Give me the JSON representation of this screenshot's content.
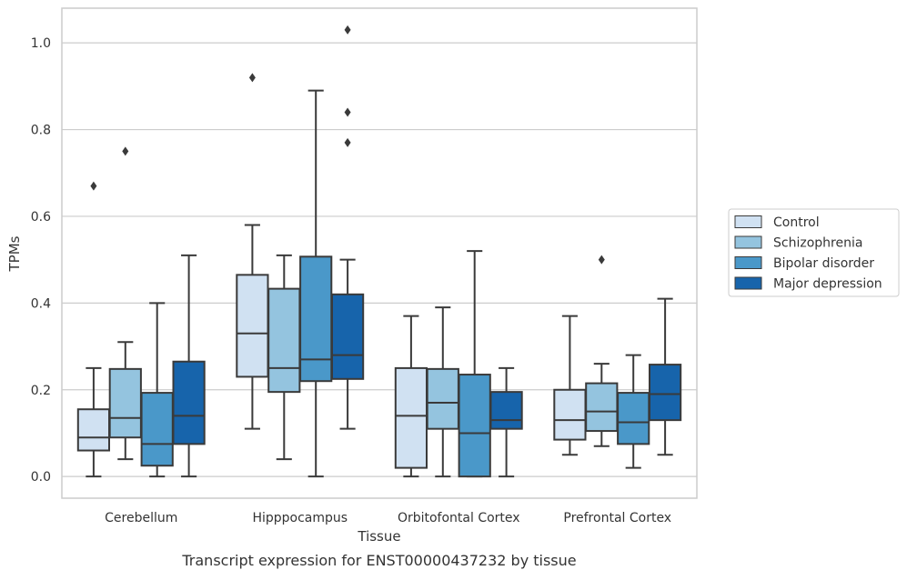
{
  "chart_data": {
    "type": "boxplot",
    "title": "",
    "caption": "Transcript expression for ENST00000437232 by tissue",
    "xlabel": "Tissue",
    "ylabel": "TPMs",
    "ylim": [
      -0.05,
      1.08
    ],
    "yticks": [
      0.0,
      0.2,
      0.4,
      0.6,
      0.8,
      1.0
    ],
    "ytick_labels": [
      "0.0",
      "0.2",
      "0.4",
      "0.6",
      "0.8",
      "1.0"
    ],
    "grid": "horizontal",
    "legend_position": "right",
    "categories": [
      "Cerebellum",
      "Hipppocampus",
      "Orbitofontal Cortex",
      "Prefrontal Cortex"
    ],
    "series": [
      {
        "name": "Control",
        "color": "#d0e1f2",
        "boxes": [
          {
            "whislo": 0.0,
            "q1": 0.06,
            "med": 0.09,
            "q3": 0.155,
            "whishi": 0.25,
            "fliers": [
              0.67
            ]
          },
          {
            "whislo": 0.11,
            "q1": 0.23,
            "med": 0.33,
            "q3": 0.465,
            "whishi": 0.58,
            "fliers": [
              0.92
            ]
          },
          {
            "whislo": 0.0,
            "q1": 0.02,
            "med": 0.14,
            "q3": 0.25,
            "whishi": 0.37,
            "fliers": []
          },
          {
            "whislo": 0.05,
            "q1": 0.085,
            "med": 0.13,
            "q3": 0.2,
            "whishi": 0.37,
            "fliers": []
          }
        ]
      },
      {
        "name": "Schizophrenia",
        "color": "#94c4df",
        "boxes": [
          {
            "whislo": 0.04,
            "q1": 0.09,
            "med": 0.135,
            "q3": 0.248,
            "whishi": 0.31,
            "fliers": [
              0.75
            ]
          },
          {
            "whislo": 0.04,
            "q1": 0.195,
            "med": 0.25,
            "q3": 0.433,
            "whishi": 0.51,
            "fliers": []
          },
          {
            "whislo": 0.0,
            "q1": 0.11,
            "med": 0.17,
            "q3": 0.248,
            "whishi": 0.39,
            "fliers": []
          },
          {
            "whislo": 0.07,
            "q1": 0.105,
            "med": 0.15,
            "q3": 0.215,
            "whishi": 0.26,
            "fliers": [
              0.5
            ]
          }
        ]
      },
      {
        "name": "Bipolar disorder",
        "color": "#4a98c9",
        "boxes": [
          {
            "whislo": 0.0,
            "q1": 0.025,
            "med": 0.075,
            "q3": 0.193,
            "whishi": 0.4,
            "fliers": []
          },
          {
            "whislo": 0.0,
            "q1": 0.22,
            "med": 0.27,
            "q3": 0.507,
            "whishi": 0.89,
            "fliers": []
          },
          {
            "whislo": 0.0,
            "q1": 0.0,
            "med": 0.1,
            "q3": 0.235,
            "whishi": 0.52,
            "fliers": []
          },
          {
            "whislo": 0.02,
            "q1": 0.075,
            "med": 0.125,
            "q3": 0.193,
            "whishi": 0.28,
            "fliers": []
          }
        ]
      },
      {
        "name": "Major depression",
        "color": "#1764ab",
        "boxes": [
          {
            "whislo": 0.0,
            "q1": 0.075,
            "med": 0.14,
            "q3": 0.265,
            "whishi": 0.51,
            "fliers": []
          },
          {
            "whislo": 0.11,
            "q1": 0.225,
            "med": 0.28,
            "q3": 0.42,
            "whishi": 0.5,
            "fliers": [
              0.77,
              0.84,
              1.03
            ]
          },
          {
            "whislo": 0.0,
            "q1": 0.11,
            "med": 0.13,
            "q3": 0.195,
            "whishi": 0.25,
            "fliers": []
          },
          {
            "whislo": 0.05,
            "q1": 0.13,
            "med": 0.19,
            "q3": 0.258,
            "whishi": 0.41,
            "fliers": []
          }
        ]
      }
    ]
  }
}
